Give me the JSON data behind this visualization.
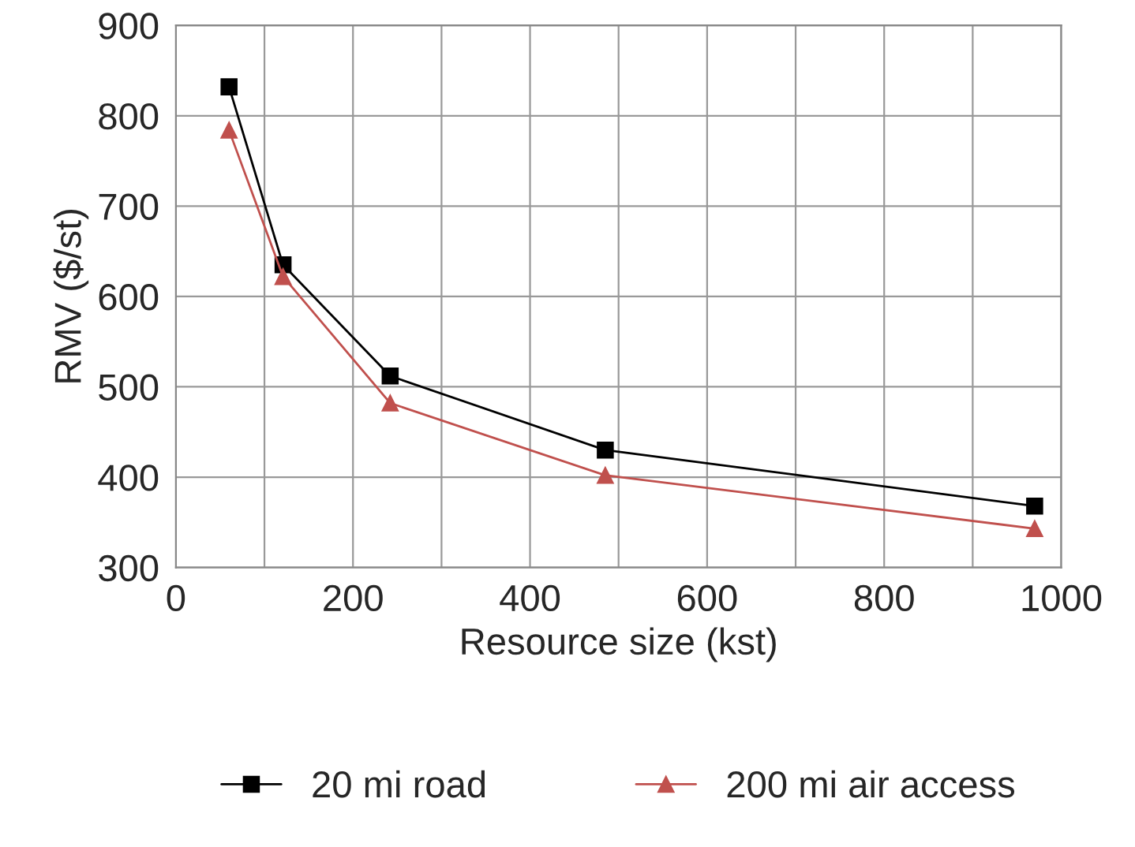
{
  "chart_data": {
    "type": "line",
    "xlabel": "Resource size (kst)",
    "ylabel": "RMV ($/st)",
    "x": [
      60,
      121,
      242,
      485,
      970
    ],
    "series": [
      {
        "name": "20 mi road",
        "color": "#000000",
        "marker": "square",
        "values": [
          832,
          635,
          512,
          430,
          368
        ]
      },
      {
        "name": "200 mi air access",
        "color": "#c0504d",
        "marker": "triangle",
        "values": [
          784,
          622,
          482,
          402,
          343
        ]
      }
    ],
    "xlim": [
      0,
      1000
    ],
    "xticks": [
      0,
      {
        "value": 100,
        "label": null
      },
      200,
      {
        "value": 300,
        "label": null
      },
      400,
      {
        "value": 500,
        "label": null
      },
      600,
      {
        "value": 700,
        "label": null
      },
      800,
      {
        "value": 900,
        "label": null
      },
      1000
    ],
    "ylim": [
      300,
      900
    ],
    "yticks": [
      300,
      400,
      500,
      600,
      700,
      800,
      900
    ],
    "grid": true,
    "legend": "bottom",
    "line_style": "solid"
  }
}
